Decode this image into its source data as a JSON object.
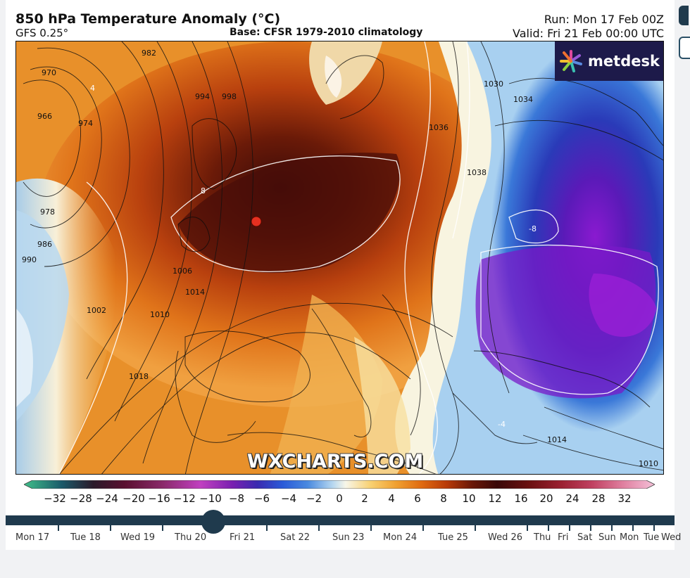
{
  "header": {
    "title": "850 hPa Temperature Anomaly (°C)",
    "model": "GFS 0.25°",
    "base": "Base: CFSR 1979-2010 climatology",
    "run": "Run: Mon 17 Feb 00Z",
    "valid": "Valid: Fri 21 Feb 00:00 UTC"
  },
  "map": {
    "logo_text": "metdesk",
    "watermark": "WXCHARTS.COM",
    "isobar_labels": [
      "982",
      "970",
      "966",
      "974",
      "994",
      "998",
      "978",
      "986",
      "990",
      "1002",
      "1010",
      "1014",
      "1018",
      "1006",
      "1030",
      "1034",
      "1036",
      "1038",
      "1010",
      "1014"
    ],
    "anomaly_labels": [
      "4",
      "8",
      "-8",
      "-4"
    ],
    "marker_color": "#e53020"
  },
  "colorbar": {
    "labels": [
      "−32",
      "−28",
      "−24",
      "−20",
      "−16",
      "−12",
      "−10",
      "−8",
      "−6",
      "−4",
      "−2",
      "0",
      "2",
      "4",
      "6",
      "8",
      "10",
      "12",
      "16",
      "20",
      "24",
      "28",
      "32"
    ],
    "colors": [
      "#3fbf8a",
      "#1b5a6a",
      "#2a1a2a",
      "#5a1030",
      "#8a2a6a",
      "#c040c0",
      "#7a20b0",
      "#3a2ab0",
      "#2a5ad8",
      "#4a8ae0",
      "#b8d8f0",
      "#f8f6e8",
      "#f8d070",
      "#f0a030",
      "#e06a10",
      "#b83a08",
      "#6a1808",
      "#3a0808",
      "#6a1010",
      "#9a2030",
      "#c04060",
      "#e080a0",
      "#f4c0d8"
    ]
  },
  "timeline": {
    "days": [
      "Mon 17",
      "Tue 18",
      "Wed 19",
      "Thu 20",
      "Fri 21",
      "Sat 22",
      "Sun 23",
      "Mon 24",
      "Tue 25",
      "Wed 26",
      "Thu",
      "Fri",
      "Sat",
      "Sun",
      "Mon",
      "Tue",
      "Wed"
    ],
    "selected": "Fri 21"
  }
}
